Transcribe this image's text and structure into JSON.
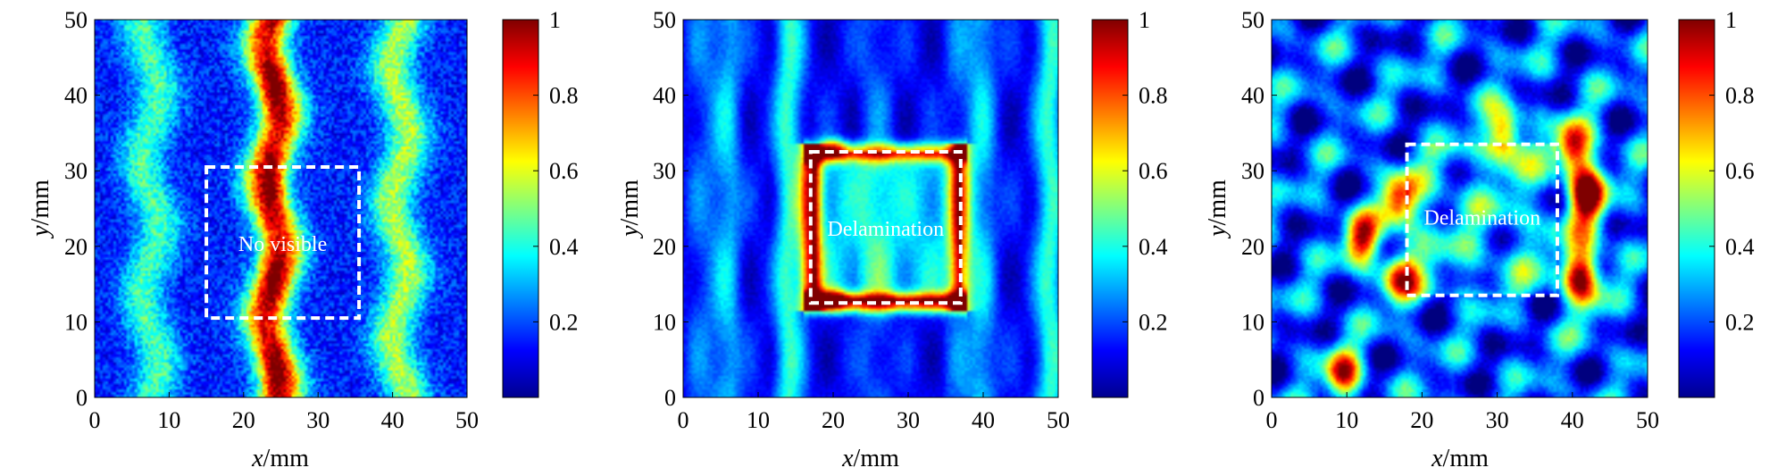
{
  "chart_data": [
    {
      "type": "heatmap",
      "title": "",
      "xlabel": "x/mm",
      "ylabel": "y/mm",
      "xlim": [
        0,
        50
      ],
      "ylim": [
        0,
        50
      ],
      "x_ticks": [
        0,
        10,
        20,
        30,
        40,
        50
      ],
      "y_ticks": [
        0,
        10,
        20,
        30,
        40,
        50
      ],
      "colorbar": {
        "range": [
          0,
          1
        ],
        "ticks": [
          0.2,
          0.4,
          0.6,
          0.8,
          1
        ],
        "colormap": "jet"
      },
      "annotation": {
        "text": "No visible",
        "box_x": [
          15,
          35.5
        ],
        "box_y": [
          10.5,
          30.5
        ]
      },
      "description_values": {
        "bands_x_mm": [
          7.5,
          24,
          41
        ],
        "band_intensity": [
          0.45,
          0.85,
          0.55
        ],
        "background_intensity": 0.15
      }
    },
    {
      "type": "heatmap",
      "title": "",
      "xlabel": "x/mm",
      "ylabel": "y/mm",
      "xlim": [
        0,
        50
      ],
      "ylim": [
        0,
        50
      ],
      "x_ticks": [
        0,
        10,
        20,
        30,
        40,
        50
      ],
      "y_ticks": [
        0,
        10,
        20,
        30,
        40,
        50
      ],
      "colorbar": {
        "range": [
          0,
          1
        ],
        "ticks": [
          0.2,
          0.4,
          0.6,
          0.8,
          1
        ],
        "colormap": "jet"
      },
      "annotation": {
        "text": "Delamination",
        "box_x": [
          17,
          37
        ],
        "box_y": [
          12.5,
          32.5
        ]
      },
      "description_values": {
        "frame_x_mm": [
          17,
          37
        ],
        "frame_y_mm": [
          12.5,
          32.5
        ],
        "frame_intensity": 0.9,
        "background_intensity": 0.12
      }
    },
    {
      "type": "heatmap",
      "title": "",
      "xlabel": "x/mm",
      "ylabel": "y/mm",
      "xlim": [
        0,
        50
      ],
      "ylim": [
        0,
        50
      ],
      "x_ticks": [
        0,
        10,
        20,
        30,
        40,
        50
      ],
      "y_ticks": [
        0,
        10,
        20,
        30,
        40,
        50
      ],
      "colorbar": {
        "range": [
          0,
          1
        ],
        "ticks": [
          0.2,
          0.4,
          0.6,
          0.8,
          1
        ],
        "colormap": "jet"
      },
      "annotation": {
        "text": "Delamination",
        "box_x": [
          18,
          38
        ],
        "box_y": [
          13.5,
          33.5
        ]
      },
      "description_values": {
        "hotspots_xy_mm": [
          [
            9.5,
            3
          ],
          [
            12,
            21
          ],
          [
            17,
            26
          ],
          [
            17,
            16
          ],
          [
            42,
            27
          ],
          [
            41,
            16
          ],
          [
            40,
            33
          ],
          [
            31,
            35
          ]
        ],
        "background_intensity": 0.2
      }
    }
  ]
}
